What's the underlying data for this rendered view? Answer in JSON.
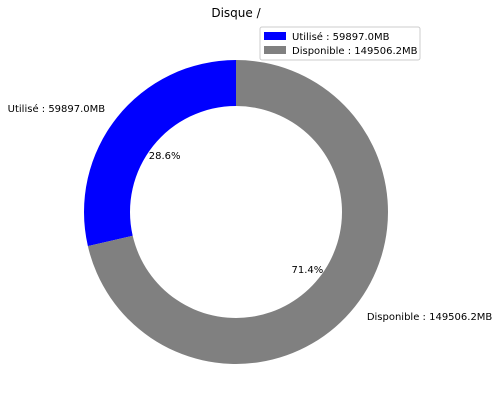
{
  "chart_data": {
    "type": "pie",
    "style": "donut",
    "title": "Disque /",
    "slices": [
      {
        "label": "Utilisé : 59897.0MB",
        "value": 59897.0,
        "percent_label": "28.6%",
        "color": "#0000ff"
      },
      {
        "label": "Disponible : 149506.2MB",
        "value": 149506.2,
        "percent_label": "71.4%",
        "color": "#808080"
      }
    ],
    "start_angle": "top",
    "direction": "counterclockwise",
    "legend": {
      "position": "top-right",
      "entries": [
        "Utilisé : 59897.0MB",
        "Disponible : 149506.2MB"
      ]
    }
  }
}
